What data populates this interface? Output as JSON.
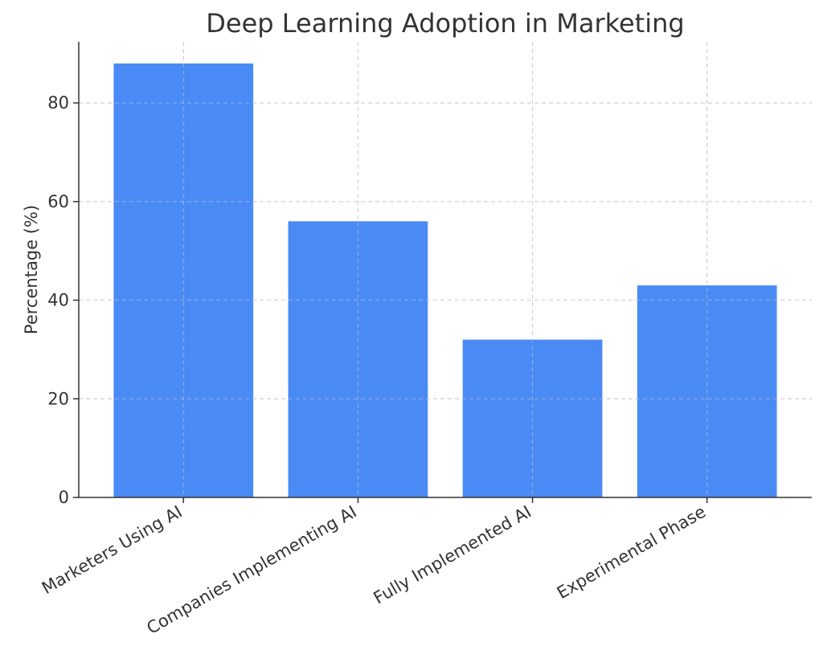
{
  "chart_data": {
    "type": "bar",
    "title": "Deep Learning Adoption in Marketing",
    "xlabel": "",
    "ylabel": "Percentage (%)",
    "categories": [
      "Marketers Using AI",
      "Companies Implementing AI",
      "Fully Implemented AI",
      "Experimental Phase"
    ],
    "values": [
      88,
      56,
      32,
      43
    ],
    "ylim": [
      0,
      92.4
    ],
    "yticks": [
      0,
      20,
      40,
      60,
      80
    ],
    "grid": true,
    "bar_color": "#4a8af4"
  }
}
